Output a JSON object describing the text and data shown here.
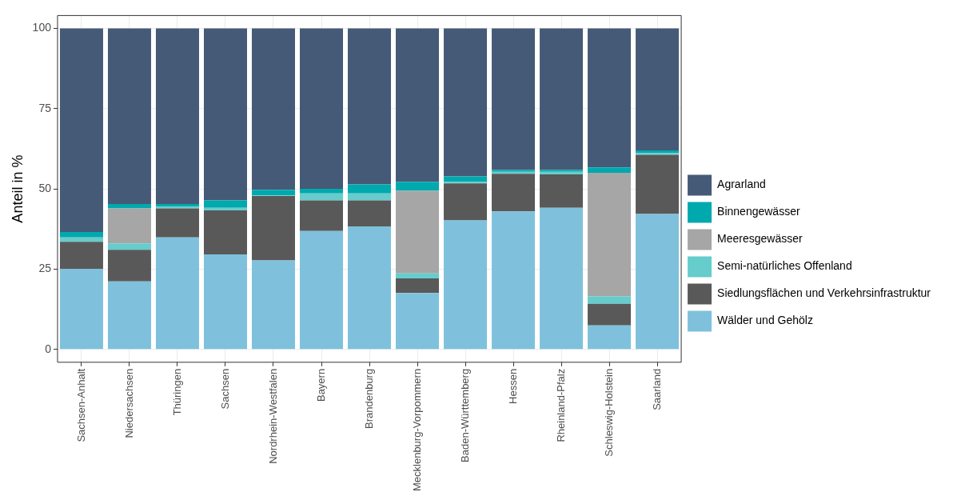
{
  "chart_data": {
    "type": "bar",
    "stacked": true,
    "ylabel": "Anteil in %",
    "ylim": [
      -4,
      104
    ],
    "yticks": [
      0,
      25,
      50,
      75,
      100
    ],
    "grid": true,
    "legend": "right",
    "categories": [
      "Sachsen-Anhalt",
      "Niedersachsen",
      "Thüringen",
      "Sachsen",
      "Nordrhein-Westfalen",
      "Bayern",
      "Brandenburg",
      "Mecklenburg-Vorpommern",
      "Baden-Württemberg",
      "Hessen",
      "Rheinland-Pfalz",
      "Schleswig-Holstein",
      "Saarland"
    ],
    "series": [
      {
        "name": "Wälder und Gehölz",
        "color": "#7fc1dc",
        "values": [
          25.1,
          21.2,
          34.9,
          29.6,
          27.7,
          36.9,
          38.3,
          17.6,
          40.2,
          43.0,
          44.1,
          7.5,
          42.2
        ]
      },
      {
        "name": "Siedlungsflächen und Verkehrsinfrastruktur",
        "color": "#595959",
        "values": [
          8.4,
          9.8,
          9.0,
          13.7,
          20.1,
          9.5,
          8.1,
          4.5,
          11.5,
          11.7,
          10.4,
          6.7,
          18.4
        ]
      },
      {
        "name": "Semi-natürliches Offenland",
        "color": "#66cccc",
        "values": [
          1.4,
          2.0,
          0.5,
          0.8,
          0.2,
          2.2,
          2.2,
          1.6,
          0.5,
          0.6,
          0.8,
          2.3,
          0.6
        ]
      },
      {
        "name": "Meeresgewässer",
        "color": "#a6a6a6",
        "values": [
          0,
          10.9,
          0,
          0,
          0,
          0,
          0,
          25.7,
          0,
          0,
          0,
          38.5,
          0
        ]
      },
      {
        "name": "Binnengewässer",
        "color": "#00a9ae",
        "values": [
          1.7,
          1.4,
          0.9,
          2.3,
          1.7,
          1.4,
          2.8,
          2.8,
          1.7,
          0.6,
          0.6,
          1.7,
          0.8
        ]
      },
      {
        "name": "Agrarland",
        "color": "#455a76",
        "values": [
          63.4,
          54.7,
          54.7,
          53.6,
          50.3,
          50.0,
          48.6,
          47.8,
          46.1,
          44.1,
          44.1,
          43.3,
          38.0
        ]
      }
    ]
  }
}
